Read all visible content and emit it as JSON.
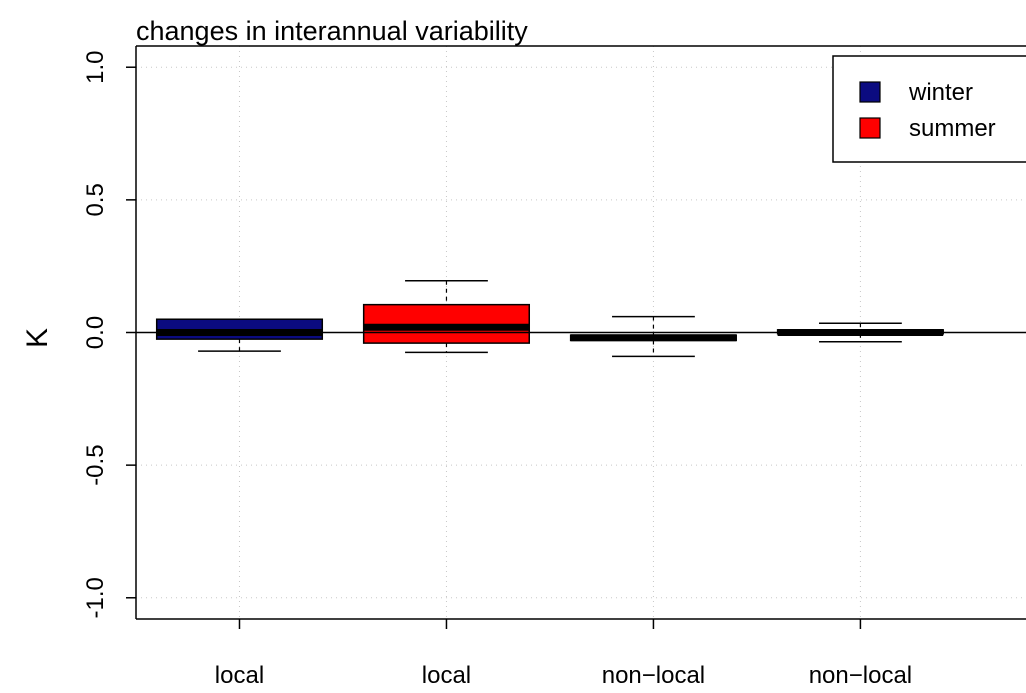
{
  "chart_data": {
    "type": "boxplot",
    "title": "changes in interannual variability",
    "xlabel": "",
    "ylabel": "K",
    "ylim": [
      -1.08,
      1.08
    ],
    "yticks": [
      1.0,
      0.5,
      0.0,
      -0.5,
      -1.0
    ],
    "ytick_labels": [
      "1.0",
      "0.5",
      "0.0",
      "-0.5",
      "-1.0"
    ],
    "grid": true,
    "reference_line": 0.0,
    "categories": [
      "local",
      "local",
      "non−local",
      "non−local"
    ],
    "boxes": [
      {
        "category": "local",
        "season": "winter",
        "whisker_low": -0.07,
        "q1": -0.025,
        "median": 0.0,
        "q3": 0.05,
        "whisker_high": 0.05
      },
      {
        "category": "local",
        "season": "summer",
        "whisker_low": -0.075,
        "q1": -0.04,
        "median": 0.02,
        "q3": 0.105,
        "whisker_high": 0.195
      },
      {
        "category": "non−local",
        "season": "winter",
        "whisker_low": -0.09,
        "q1": -0.03,
        "median": -0.02,
        "q3": -0.01,
        "whisker_high": 0.06
      },
      {
        "category": "non−local",
        "season": "summer",
        "whisker_low": -0.035,
        "q1": -0.005,
        "median": 0.0,
        "q3": 0.01,
        "whisker_high": 0.035
      }
    ],
    "legend": {
      "placement": "top-right",
      "entries": [
        {
          "label": "winter",
          "color": "#0b0b80"
        },
        {
          "label": "summer",
          "color": "#ff0000"
        }
      ]
    },
    "colors": {
      "winter": "#0b0b80",
      "summer": "#ff0000"
    }
  }
}
